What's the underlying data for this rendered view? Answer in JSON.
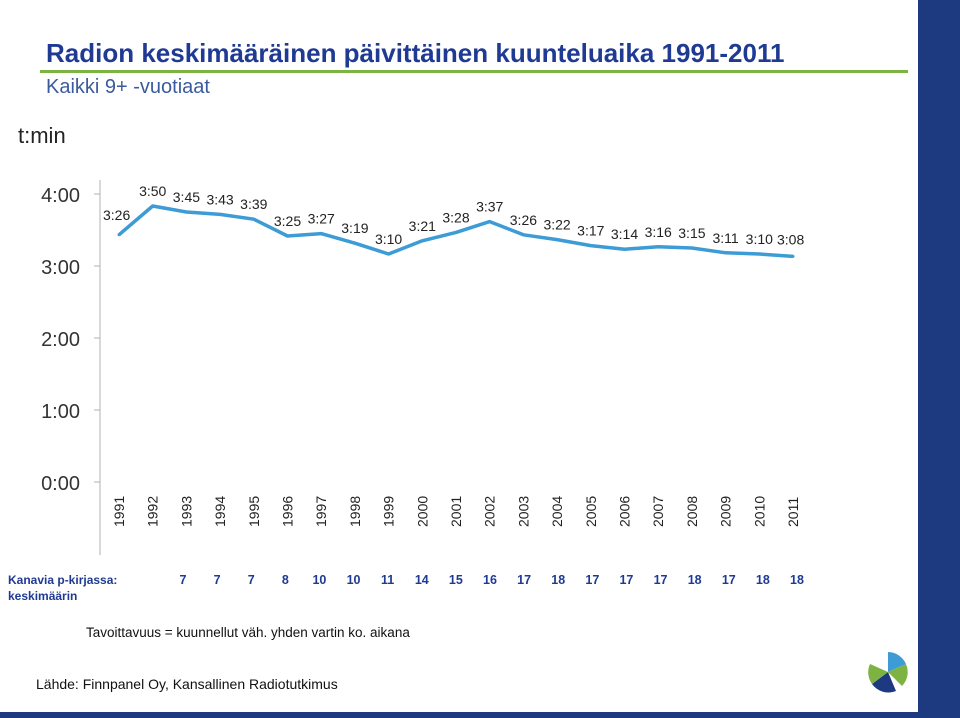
{
  "title": "Radion keskimääräinen päivittäinen kuunteluaika 1991-2011",
  "subtitle": "Kaikki 9+ -vuotiaat",
  "unit_label": "t:min",
  "chart_data": {
    "type": "line",
    "title": "Radion keskimääräinen päivittäinen kuunteluaika 1991-2011",
    "subtitle": "Kaikki 9+ -vuotiaat",
    "ylabel": "t:min",
    "ylim_minutes": [
      0,
      240
    ],
    "y_ticks": [
      "0:00",
      "1:00",
      "2:00",
      "3:00",
      "4:00"
    ],
    "x": [
      "1991",
      "1992",
      "1993",
      "1994",
      "1995",
      "1996",
      "1997",
      "1998",
      "1999",
      "2000",
      "2001",
      "2002",
      "2003",
      "2004",
      "2005",
      "2006",
      "2007",
      "2008",
      "2009",
      "2010",
      "2011"
    ],
    "series": [
      {
        "color": "#3d9bd6",
        "values_minutes": [
          206,
          230,
          225,
          223,
          219,
          205,
          207,
          199,
          190,
          201,
          208,
          217,
          206,
          202,
          197,
          194,
          196,
          195,
          191,
          190,
          188
        ],
        "labels": [
          "3:26",
          "3:50",
          "3:45",
          "3:43",
          "3:39",
          "3:25",
          "3:27",
          "3:19",
          "3:10",
          "3:21",
          "3:28",
          "3:37",
          "3:26",
          "3:22",
          "3:17",
          "3:14",
          "3:16",
          "3:15",
          "3:11",
          "3:10",
          "3:08"
        ]
      }
    ],
    "grid": false
  },
  "table": {
    "label_line1": "Kanavia p-kirjassa:",
    "label_line2": "keskimäärin",
    "values": [
      "7",
      "7",
      "7",
      "8",
      "10",
      "10",
      "11",
      "14",
      "15",
      "16",
      "17",
      "18",
      "17",
      "17",
      "17",
      "18",
      "17",
      "18",
      "18"
    ]
  },
  "note": "Tavoittavuus = kuunnellut väh. yhden vartin ko. aikana",
  "source": "Lähde: Finnpanel Oy, Kansallinen Radiotutkimus",
  "colors": {
    "title": "#1f3a93",
    "accent_line": "#7cb342",
    "frame": "#1d3a80",
    "series": "#3d9bd6"
  }
}
